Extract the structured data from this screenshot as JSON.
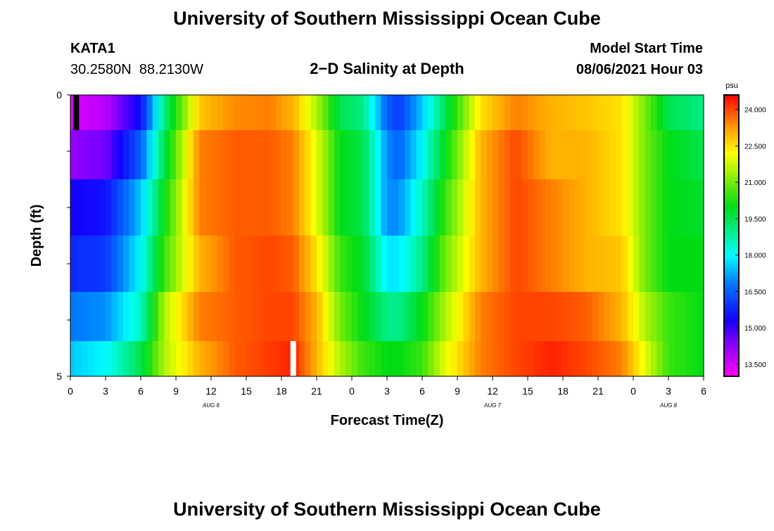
{
  "header": {
    "title": "University of Southern Mississippi Ocean Cube",
    "station": "KATA1",
    "coords": "30.2580N  88.2130W",
    "subtitle": "2−D Salinity at Depth",
    "model_start_label": "Model Start Time",
    "model_start_value": "08/06/2021 Hour 03"
  },
  "footer": {
    "title": "University of Southern Mississippi Ocean Cube"
  },
  "colorbar": {
    "unit": "psu",
    "tick_labels": [
      "24.000",
      "22.500",
      "21.000",
      "19.500",
      "18.000",
      "16.500",
      "15.000",
      "13.500"
    ],
    "tick_values": [
      24.0,
      22.5,
      21.0,
      19.5,
      18.0,
      16.5,
      15.0,
      13.5
    ],
    "range": [
      13.0,
      24.6
    ]
  },
  "chart_data": {
    "type": "heatmap",
    "title": "2−D Salinity at Depth",
    "xlabel": "Forecast Time(Z)",
    "ylabel": "Depth (ft)",
    "x_tick_labels": [
      "0",
      "3",
      "6",
      "9",
      "12",
      "15",
      "18",
      "21",
      "0",
      "3",
      "6",
      "9",
      "12",
      "15",
      "18",
      "21",
      "0",
      "3",
      "6"
    ],
    "x_hours_from_start": [
      0,
      3,
      6,
      9,
      12,
      15,
      18,
      21,
      24,
      27,
      30,
      33,
      36,
      39,
      42,
      45,
      48,
      51,
      54
    ],
    "x_range": [
      0,
      54
    ],
    "date_labels": [
      {
        "label": "AUG 6",
        "hour": 12
      },
      {
        "label": "AUG 7",
        "hour": 36
      },
      {
        "label": "AUG 8",
        "hour": 51
      }
    ],
    "y_tick_labels": [
      "0",
      "5"
    ],
    "y_range": [
      0,
      5
    ],
    "depth_levels": [
      0.25,
      1.0,
      2.0,
      3.0,
      4.0,
      4.75
    ],
    "anchor_hours": [
      0,
      3,
      6,
      8,
      11,
      14,
      17,
      19,
      21,
      23,
      25,
      27,
      28,
      30,
      32,
      35,
      38,
      41,
      44,
      47,
      49,
      51,
      54
    ],
    "salinity_psu": [
      [
        13.4,
        13.8,
        15.5,
        19.0,
        22.8,
        23.4,
        23.5,
        23.0,
        21.5,
        19.5,
        19.0,
        16.5,
        16.0,
        17.5,
        19.5,
        22.5,
        23.5,
        23.0,
        22.8,
        22.5,
        21.0,
        19.5,
        19.0
      ],
      [
        14.2,
        14.5,
        16.5,
        19.5,
        23.5,
        23.8,
        23.8,
        23.5,
        22.0,
        20.0,
        19.5,
        17.0,
        16.5,
        18.0,
        20.0,
        23.0,
        24.0,
        23.0,
        23.0,
        22.5,
        21.0,
        20.0,
        19.5
      ],
      [
        15.3,
        15.5,
        17.5,
        20.0,
        23.5,
        23.8,
        23.8,
        23.5,
        22.0,
        20.0,
        19.5,
        17.0,
        17.0,
        18.5,
        20.5,
        23.0,
        24.0,
        23.5,
        23.0,
        22.5,
        21.0,
        20.0,
        19.8
      ],
      [
        15.8,
        16.0,
        18.0,
        20.5,
        23.0,
        23.8,
        24.0,
        23.8,
        22.5,
        20.5,
        19.8,
        17.8,
        17.8,
        19.0,
        21.0,
        23.0,
        24.0,
        23.5,
        23.0,
        22.8,
        21.0,
        20.0,
        20.0
      ],
      [
        16.8,
        17.0,
        18.5,
        21.5,
        23.5,
        23.8,
        24.0,
        24.0,
        23.0,
        21.0,
        20.0,
        19.0,
        19.0,
        20.0,
        21.5,
        23.5,
        24.0,
        24.0,
        23.8,
        23.0,
        21.5,
        20.5,
        20.0
      ],
      [
        17.5,
        18.0,
        19.5,
        21.5,
        23.0,
        23.8,
        24.1,
        24.3,
        23.0,
        21.5,
        20.5,
        20.0,
        20.0,
        20.5,
        22.0,
        23.5,
        24.0,
        24.3,
        24.0,
        23.5,
        22.0,
        20.5,
        20.0
      ]
    ],
    "masked_cells": [
      {
        "hour": 0.5,
        "depth_level_index": 0,
        "color": "black"
      },
      {
        "hour": 19.0,
        "depth_level_index": 5,
        "color": "white"
      }
    ]
  }
}
